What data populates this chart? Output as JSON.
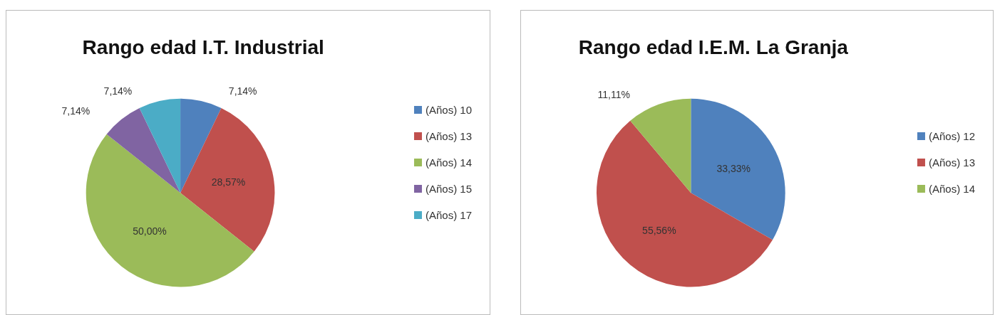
{
  "chart_data": [
    {
      "type": "pie",
      "title": "Rango edad I.T. Industrial",
      "categories": [
        "(Años) 10",
        "(Años) 13",
        "(Años) 14",
        "(Años) 15",
        "(Años) 17"
      ],
      "values": [
        7.14,
        28.57,
        50.0,
        7.14,
        7.14
      ],
      "colors": [
        "#4f81bd",
        "#c0504d",
        "#9bbb59",
        "#8064a2",
        "#4bacc6"
      ],
      "value_labels": [
        "7,14%",
        "28,57%",
        "50,00%",
        "7,14%",
        "7,14%"
      ],
      "legend": "right"
    },
    {
      "type": "pie",
      "title": "Rango edad I.E.M. La Granja",
      "categories": [
        "(Años) 12",
        "(Años) 13",
        "(Años) 14"
      ],
      "values": [
        33.33,
        55.56,
        11.11
      ],
      "colors": [
        "#4f81bd",
        "#c0504d",
        "#9bbb59"
      ],
      "value_labels": [
        "33,33%",
        "55,56%",
        "11,11%"
      ],
      "legend": "right"
    }
  ]
}
